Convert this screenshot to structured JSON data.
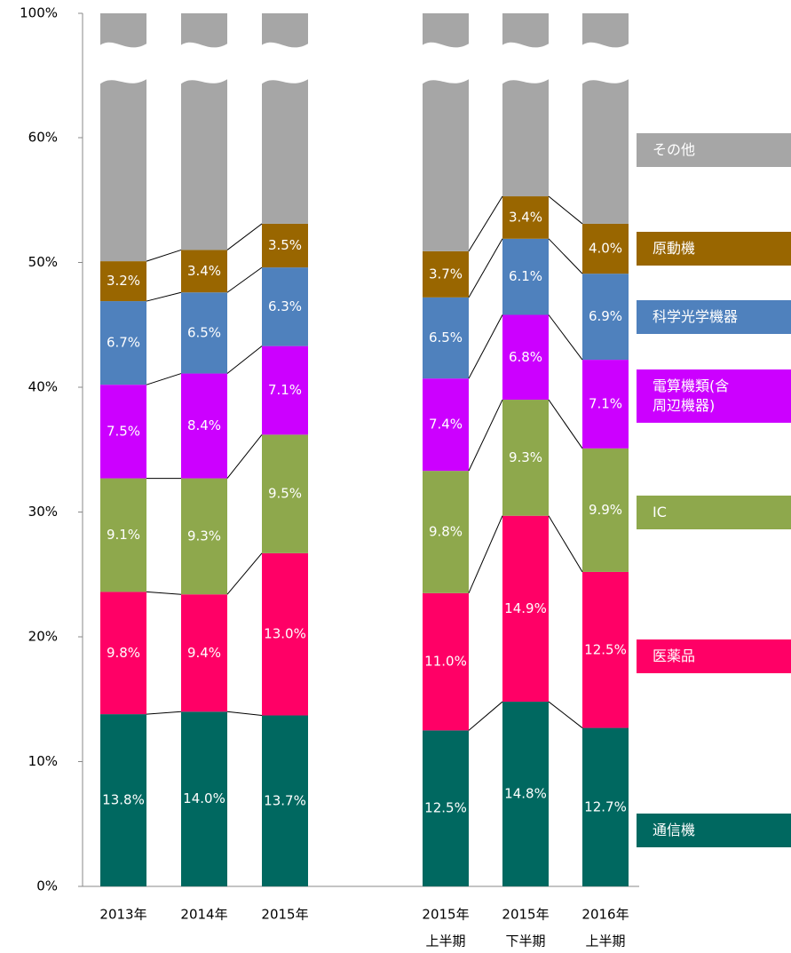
{
  "chart_data": {
    "type": "stacked-bar",
    "categories": [
      [
        "2013年"
      ],
      [
        "2014年"
      ],
      [
        "2015年"
      ],
      [
        "2015年",
        "上半期"
      ],
      [
        "2015年",
        "下半期"
      ],
      [
        "2016年",
        "上半期"
      ]
    ],
    "series": [
      {
        "name": "通信機",
        "color": "#006860",
        "values": [
          13.8,
          14.0,
          13.7,
          12.5,
          14.8,
          12.7
        ],
        "value_labels": [
          "13.8%",
          "14.0%",
          "13.7%",
          "12.5%",
          "14.8%",
          "12.7%"
        ]
      },
      {
        "name": "医薬品",
        "color": "#ff0066",
        "values": [
          9.8,
          9.4,
          13.0,
          11.0,
          14.9,
          12.5
        ],
        "value_labels": [
          "9.8%",
          "9.4%",
          "13.0%",
          "11.0%",
          "14.9%",
          "12.5%"
        ]
      },
      {
        "name": "IC",
        "color": "#8ea84c",
        "values": [
          9.1,
          9.3,
          9.5,
          9.8,
          9.3,
          9.9
        ],
        "value_labels": [
          "9.1%",
          "9.3%",
          "9.5%",
          "9.8%",
          "9.3%",
          "9.9%"
        ]
      },
      {
        "name": "電算機類(含周辺機器)",
        "color": "#cc00ff",
        "values": [
          7.5,
          8.4,
          7.1,
          7.4,
          6.8,
          7.1
        ],
        "value_labels": [
          "7.5%",
          "8.4%",
          "7.1%",
          "7.4%",
          "6.8%",
          "7.1%"
        ]
      },
      {
        "name": "科学光学機器",
        "color": "#4f81bd",
        "values": [
          6.7,
          6.5,
          6.3,
          6.5,
          6.1,
          6.9
        ],
        "value_labels": [
          "6.7%",
          "6.5%",
          "6.3%",
          "6.5%",
          "6.1%",
          "6.9%"
        ]
      },
      {
        "name": "原動機",
        "color": "#996600",
        "values": [
          3.2,
          3.4,
          3.5,
          3.7,
          3.4,
          4.0
        ],
        "value_labels": [
          "3.2%",
          "3.4%",
          "3.5%",
          "3.7%",
          "3.4%",
          "4.0%"
        ]
      },
      {
        "name": "その他",
        "color": "#a6a6a6",
        "values": [
          49.9,
          49.0,
          46.9,
          49.1,
          44.7,
          46.9
        ]
      }
    ],
    "ylim": [
      0,
      100
    ],
    "yticks": [
      {
        "value": 0,
        "label": "0%"
      },
      {
        "value": 10,
        "label": "10%"
      },
      {
        "value": 20,
        "label": "20%"
      },
      {
        "value": 30,
        "label": "30%"
      },
      {
        "value": 40,
        "label": "40%"
      },
      {
        "value": 50,
        "label": "50%"
      },
      {
        "value": 60,
        "label": "60%"
      },
      {
        "value": 100,
        "label": "100%"
      }
    ],
    "axis_break": [
      60,
      100
    ],
    "legend": "right"
  }
}
